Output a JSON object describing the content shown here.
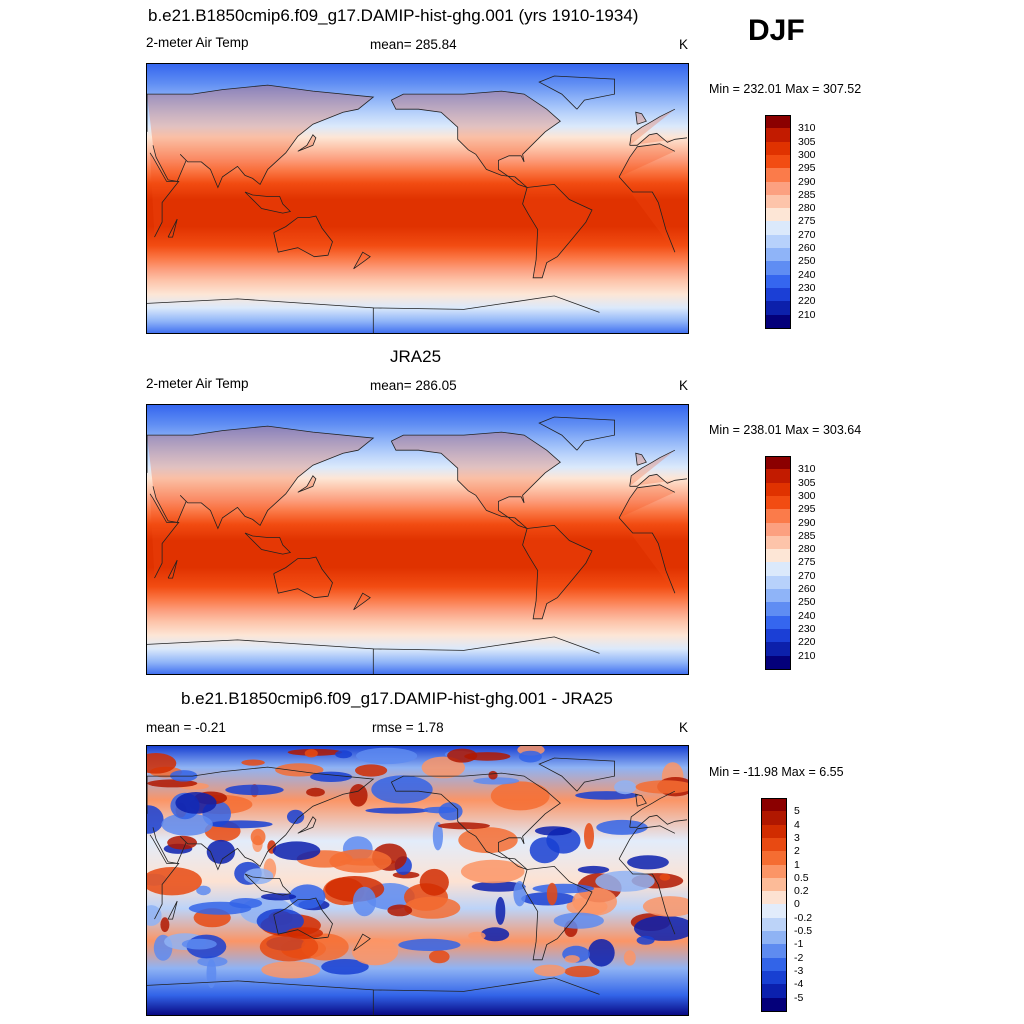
{
  "figure": {
    "season": "DJF"
  },
  "panels": [
    {
      "title": "b.e21.B1850cmip6.f09_g17.DAMIP-hist-ghg.001 (yrs 1910-1934)",
      "left_label": "2-meter Air Temp",
      "center_label": "mean= 285.84",
      "unit": "K",
      "minmax": "Min = 232.01 Max = 307.52",
      "type": "abs"
    },
    {
      "title": "JRA25",
      "left_label": "2-meter Air Temp",
      "center_label": "mean= 286.05",
      "unit": "K",
      "minmax": "Min = 238.01 Max = 303.64",
      "type": "abs"
    },
    {
      "title": "b.e21.B1850cmip6.f09_g17.DAMIP-hist-ghg.001 - JRA25",
      "left_label": "mean =  -0.21",
      "center_label": "rmse =    1.78",
      "unit": "K",
      "minmax": "Min = -11.98 Max =   6.55",
      "type": "diff"
    }
  ],
  "chart_data": [
    {
      "type": "heatmap",
      "title": "b.e21.B1850cmip6.f09_g17.DAMIP-hist-ghg.001 (yrs 1910-1934)",
      "variable": "2-meter Air Temp",
      "units": "K",
      "mean": 285.84,
      "min": 232.01,
      "max": 307.52,
      "colorbar_levels": [
        310,
        305,
        300,
        295,
        290,
        285,
        280,
        275,
        270,
        260,
        250,
        240,
        230,
        220,
        210
      ],
      "colorbar_colors": [
        "#8b0000",
        "#c21b00",
        "#e03200",
        "#f24c12",
        "#fb7b4a",
        "#fca080",
        "#fdc4aa",
        "#fde6d6",
        "#dbe9fb",
        "#b7d1fb",
        "#8fb4f8",
        "#5f8df3",
        "#3566ef",
        "#1b3fd6",
        "#0c20ab",
        "#04007a"
      ]
    },
    {
      "type": "heatmap",
      "title": "JRA25",
      "variable": "2-meter Air Temp",
      "units": "K",
      "mean": 286.05,
      "min": 238.01,
      "max": 303.64,
      "colorbar_levels": [
        310,
        305,
        300,
        295,
        290,
        285,
        280,
        275,
        270,
        260,
        250,
        240,
        230,
        220,
        210
      ],
      "colorbar_colors": [
        "#8b0000",
        "#c21b00",
        "#e03200",
        "#f24c12",
        "#fb7b4a",
        "#fca080",
        "#fdc4aa",
        "#fde6d6",
        "#dbe9fb",
        "#b7d1fb",
        "#8fb4f8",
        "#5f8df3",
        "#3566ef",
        "#1b3fd6",
        "#0c20ab",
        "#04007a"
      ]
    },
    {
      "type": "heatmap",
      "title": "b.e21.B1850cmip6.f09_g17.DAMIP-hist-ghg.001 - JRA25",
      "units": "K",
      "mean": -0.21,
      "rmse": 1.78,
      "min": -11.98,
      "max": 6.55,
      "colorbar_levels": [
        "5",
        "4",
        "3",
        "2",
        "1",
        "0.5",
        "0.2",
        "0",
        "-0.2",
        "-0.5",
        "-1",
        "-2",
        "-3",
        "-4",
        "-5"
      ],
      "colorbar_colors": [
        "#8b0000",
        "#b01700",
        "#d12c00",
        "#e84a12",
        "#f56d32",
        "#fb9566",
        "#fcbb98",
        "#fde2d2",
        "#e2ecfb",
        "#bcd3f8",
        "#8fb3f4",
        "#5e8bf0",
        "#3264e8",
        "#1840d2",
        "#0b20ae",
        "#04007a"
      ]
    }
  ]
}
